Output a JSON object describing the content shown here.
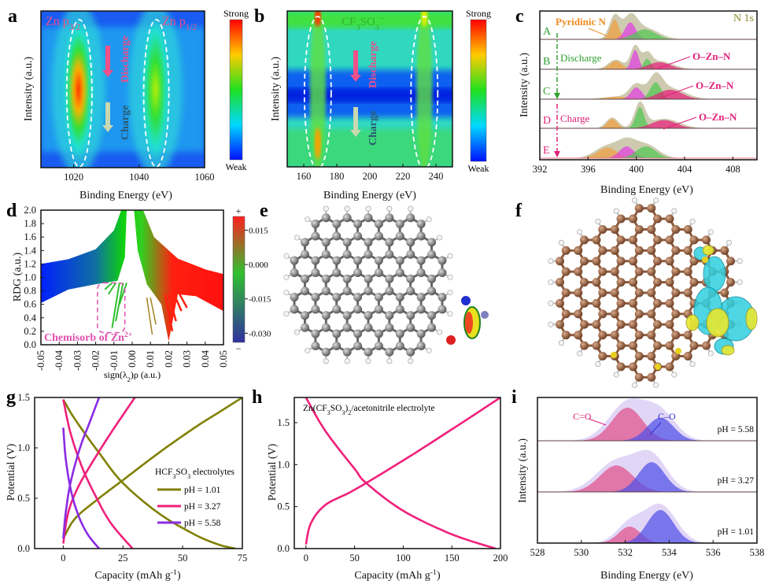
{
  "figure": {
    "panel_labels": [
      "a",
      "b",
      "c",
      "d",
      "e",
      "f",
      "g",
      "h",
      "i"
    ]
  },
  "chart_data": [
    {
      "panel": "a",
      "type": "heatmap",
      "xlabel": "Binding Energy (eV)",
      "ylabel": "Intensity (a.u.)",
      "xlim": [
        1010,
        1060
      ],
      "xticks": [
        "1020",
        "1040",
        "1060"
      ],
      "colorbar": {
        "max_label": "Strong",
        "min_label": "Weak",
        "colors": [
          "#ff0000",
          "#ffff00",
          "#00e000",
          "#00e0ff",
          "#0000ff"
        ]
      },
      "peaks": [
        {
          "label": "Zn p",
          "sub": "3/2",
          "center": 1021.5,
          "level": 1.0
        },
        {
          "label": "Zn p",
          "sub": "1/2",
          "center": 1045,
          "level": 0.6
        }
      ],
      "discharge_label": "Discharge",
      "charge_label": "Charge",
      "colors": {
        "label": "#e8508a",
        "discharge_arrow": "#f0508a",
        "charge_arrow": "#c8d8b0",
        "charge_text": "#2a5a70"
      }
    },
    {
      "panel": "b",
      "type": "heatmap",
      "xlabel": "Binding Energy (eV)",
      "ylabel": "Intensity (a.u.)",
      "xlim": [
        150,
        250
      ],
      "xticks": [
        "160",
        "180",
        "200",
        "220",
        "240"
      ],
      "colorbar": {
        "max_label": "Strong",
        "min_label": "Weak",
        "colors": [
          "#ff0000",
          "#ffff00",
          "#00e000",
          "#00e0ff",
          "#0000ff"
        ]
      },
      "peaks": [
        {
          "label": "CF",
          "sub1": "3",
          "mid": "SO",
          "sub2": "3",
          "sup": "−",
          "center": 168.5,
          "level": 0.9
        },
        {
          "center": 233,
          "level": 0.7
        }
      ],
      "discharge_label": "Discharge",
      "charge_label": "Charge"
    },
    {
      "panel": "c",
      "type": "area",
      "title": "N 1s",
      "xlabel": "Binding Energy (eV)",
      "ylabel": "Intensity (a.u.)",
      "xlim": [
        392,
        410
      ],
      "xticks": [
        "392",
        "396",
        "400",
        "404",
        "408"
      ],
      "colors": {
        "pyridinic": "#f0a040",
        "pyrrolic": "#e040e0",
        "graphitic": "#50c850",
        "ozn": "#e8207a",
        "envelope": "#bdb894"
      },
      "spectra": [
        {
          "label": "A",
          "components": [
            [
              398.2,
              0.85,
              0.35,
              "pyridinic"
            ],
            [
              399.5,
              0.72,
              0.45,
              "pyrrolic"
            ],
            [
              400.7,
              0.42,
              0.9,
              "graphitic"
            ]
          ]
        },
        {
          "label": "B",
          "components": [
            [
              398.3,
              0.35,
              0.5,
              "pyridinic"
            ],
            [
              399.9,
              0.82,
              0.3,
              "pyrrolic"
            ],
            [
              400.9,
              0.45,
              0.3,
              "graphitic"
            ],
            [
              401.9,
              0.3,
              0.9,
              "ozn"
            ]
          ]
        },
        {
          "label": "C",
          "components": [
            [
              398.5,
              0.1,
              1.0,
              "pyridinic"
            ],
            [
              400.0,
              0.5,
              0.45,
              "pyrrolic"
            ],
            [
              401.6,
              0.72,
              0.45,
              "graphitic"
            ],
            [
              402.8,
              0.4,
              1.0,
              "ozn"
            ]
          ]
        },
        {
          "label": "D",
          "components": [
            [
              398.0,
              0.4,
              0.4,
              "pyridinic"
            ],
            [
              400.3,
              0.9,
              0.35,
              "graphitic"
            ],
            [
              402.3,
              0.35,
              1.0,
              "ozn"
            ]
          ]
        },
        {
          "label": "E",
          "components": [
            [
              397.6,
              0.45,
              0.8,
              "pyridinic"
            ],
            [
              399.2,
              0.5,
              0.6,
              "pyrrolic"
            ],
            [
              400.8,
              0.5,
              0.8,
              "graphitic"
            ]
          ]
        }
      ],
      "annotations": {
        "pyridinic": "Pyridinic N",
        "ozn": "O–Zn–N",
        "discharge": "Discharge",
        "charge": "Charge"
      }
    },
    {
      "panel": "d",
      "type": "scatter",
      "xlabel": "sign(λ",
      "xlabel_sub": "2",
      "xlabel_end": ")ρ (a.u.)",
      "ylabel": "RDG (a.u.)",
      "xlim": [
        -0.05,
        0.05
      ],
      "ylim": [
        0,
        2.0
      ],
      "xticks": [
        "-0.05",
        "-0.04",
        "-0.03",
        "-0.02",
        "-0.01",
        "0.00",
        "0.01",
        "0.02",
        "0.03",
        "0.04",
        "0.05"
      ],
      "yticks": [
        "0.0",
        "0.2",
        "0.4",
        "0.6",
        "0.8",
        "1.0",
        "1.2",
        "1.4",
        "1.6",
        "1.8",
        "2.0"
      ],
      "colorbar": {
        "ticks": [
          "0.015",
          "0.000",
          "-0.015",
          "-0.030"
        ],
        "plus": "+",
        "minus": "−",
        "range": [
          -0.034,
          0.021
        ],
        "colors": [
          "#ff2020",
          "#20c020",
          "#3030a0"
        ]
      },
      "annotation": "Chemisorb of Zn",
      "annotation_sup": "2+",
      "annotation_color": "#e050b0"
    },
    {
      "panel": "g",
      "type": "line",
      "xlabel": "Capacity (mAh g",
      "xlabel_sup": "-1",
      "xlabel_end": ")",
      "ylabel": "Potential (V)",
      "xlim": [
        -12,
        75
      ],
      "ylim": [
        0,
        1.5
      ],
      "xticks": [
        "0",
        "25",
        "50",
        "75"
      ],
      "yticks": [
        "0.0",
        "0.5",
        "1.0",
        "1.5"
      ],
      "legend_title": "HCF",
      "legend_title_sub1": "3",
      "legend_title_mid": "SO",
      "legend_title_sub2": "3",
      "legend_title_end": " electrolytes",
      "series": [
        {
          "name": "pH = 1.01",
          "color": "#808000",
          "charge": [
            [
              0,
              0.1
            ],
            [
              5,
              0.3
            ],
            [
              15,
              0.5
            ],
            [
              25,
              0.68
            ],
            [
              40,
              0.95
            ],
            [
              55,
              1.2
            ],
            [
              65,
              1.35
            ],
            [
              75,
              1.5
            ]
          ],
          "discharge": [
            [
              0,
              1.48
            ],
            [
              5,
              1.28
            ],
            [
              15,
              0.95
            ],
            [
              25,
              0.65
            ],
            [
              40,
              0.35
            ],
            [
              55,
              0.14
            ],
            [
              65,
              0.04
            ],
            [
              72,
              0
            ]
          ]
        },
        {
          "name": "pH = 3.27",
          "color": "#f0207a",
          "charge": [
            [
              0,
              0.05
            ],
            [
              2,
              0.35
            ],
            [
              6,
              0.6
            ],
            [
              12,
              0.85
            ],
            [
              20,
              1.15
            ],
            [
              30,
              1.5
            ]
          ],
          "discharge": [
            [
              0,
              1.48
            ],
            [
              3,
              1.15
            ],
            [
              8,
              0.8
            ],
            [
              14,
              0.5
            ],
            [
              20,
              0.25
            ],
            [
              29,
              0
            ]
          ]
        },
        {
          "name": "pH = 5.58",
          "color": "#8a2be2",
          "charge": [
            [
              0,
              0.1
            ],
            [
              1,
              0.35
            ],
            [
              3,
              0.65
            ],
            [
              7,
              1.0
            ],
            [
              11,
              1.25
            ],
            [
              15,
              1.5
            ]
          ],
          "discharge": [
            [
              0,
              1.2
            ],
            [
              1,
              0.9
            ],
            [
              3,
              0.6
            ],
            [
              6,
              0.35
            ],
            [
              10,
              0.15
            ],
            [
              15,
              0
            ]
          ]
        }
      ]
    },
    {
      "panel": "h",
      "type": "line",
      "xlabel": "Capacity (mAh g",
      "xlabel_sup": "-1",
      "xlabel_end": ")",
      "ylabel": "Potential (V)",
      "xlim": [
        -12,
        200
      ],
      "ylim": [
        0,
        1.8
      ],
      "xticks": [
        "0",
        "50",
        "100",
        "150",
        "200"
      ],
      "yticks": [
        "0.0",
        "0.5",
        "1.0",
        "1.5"
      ],
      "annotation": "Zn(CF",
      "annotation_sub1": "3",
      "annotation_mid": "SO",
      "annotation_sub2": "3",
      "annotation_mid2": ")",
      "annotation_sub3": "2",
      "annotation_end": "/acetonitrile electrolyte",
      "series": [
        {
          "color": "#f0207a",
          "charge": [
            [
              0,
              0.05
            ],
            [
              5,
              0.3
            ],
            [
              20,
              0.52
            ],
            [
              50,
              0.7
            ],
            [
              100,
              1.05
            ],
            [
              150,
              1.42
            ],
            [
              200,
              1.8
            ]
          ],
          "discharge": [
            [
              0,
              1.8
            ],
            [
              20,
              1.4
            ],
            [
              50,
              0.95
            ],
            [
              62,
              0.78
            ],
            [
              100,
              0.45
            ],
            [
              150,
              0.17
            ],
            [
              195,
              0
            ]
          ]
        }
      ]
    },
    {
      "panel": "i",
      "type": "area",
      "xlabel": "Binding Energy (eV)",
      "ylabel": "Intensity (a.u.)",
      "xlim": [
        528,
        538
      ],
      "xticks": [
        "528",
        "530",
        "532",
        "534",
        "536",
        "538"
      ],
      "colors": {
        "co_double": "#e0508a",
        "co_single": "#5050e8",
        "envelope": "#d8c8f4"
      },
      "spectra": [
        {
          "label": "pH = 5.58",
          "components": [
            [
              532.1,
              1.0,
              0.7,
              "co_double"
            ],
            [
              533.6,
              0.7,
              0.6,
              "co_single"
            ]
          ]
        },
        {
          "label": "pH = 3.27",
          "components": [
            [
              531.6,
              0.8,
              0.75,
              "co_double"
            ],
            [
              533.2,
              0.9,
              0.6,
              "co_single"
            ]
          ]
        },
        {
          "label": "pH = 1.01",
          "components": [
            [
              532.2,
              0.5,
              0.5,
              "co_double"
            ],
            [
              533.6,
              1.0,
              0.6,
              "co_single"
            ]
          ]
        }
      ],
      "annotations": {
        "co_double": "C=O",
        "co_single": "C–O"
      }
    }
  ],
  "diagrams": {
    "e": {
      "type": "molecular-structure",
      "atom_color": "#7a7a7a",
      "hydrogen_color": "#f4f4f4",
      "nitrogen_color": "#2030d0",
      "oxygen_color": "#e02020"
    },
    "f": {
      "type": "charge-density-difference",
      "atom_color": "#8b5a3c",
      "hydrogen_color": "#f4f4f4",
      "accumulation_color": "#e8e830",
      "depletion_color": "#30d0e0"
    }
  }
}
